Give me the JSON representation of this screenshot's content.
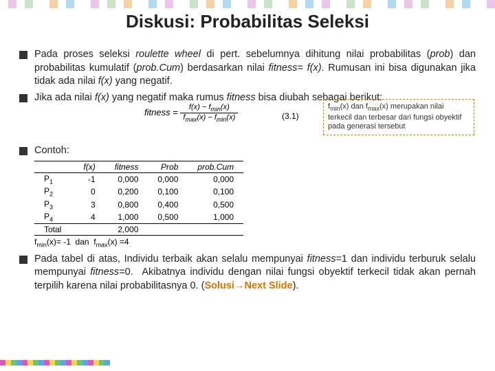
{
  "title": "Diskusi: Probabilitas Seleksi",
  "bullets": {
    "b1": "Pada proses seleksi roulette wheel di pert. sebelumnya dihitung nilai probabilitas (prob) dan probabilitas kumulatif (prob.Cum) berdasarkan nilai fitness= f(x). Rumusan ini bisa digunakan jika tidak ada nilai f(x) yang negatif.",
    "b2": "Jika ada nilai f(x) yang negatif maka rumus fitness bisa diubah sebagai berikut:",
    "b3": "Contoh:",
    "b4": "Pada tabel di atas, Individu terbaik akan selalu mempunyai fitness=1 dan individu terburuk selalu mempunyai fitness=0.  Akibatnya individu dengan nilai fungsi obyektif terkecil tidak akan pernah terpilih karena nilai probabilitasnya 0. (",
    "b4_solusi": "Solusi",
    "b4_arrow": "→",
    "b4_next": "Next Slide",
    "b4_end": ")."
  },
  "equation": {
    "lhs": "fitness =",
    "num": "f(x) − f_min(x)",
    "den": "f_max(x) − f_min(x)",
    "label": "(3.1)"
  },
  "note": {
    "text": "f_min(x) dan f_max(x) merupakan nilai terkecil dan terbesar dari fungsi obyektif pada generasi tersebut"
  },
  "table": {
    "headers": [
      "",
      "f(x)",
      "fitness",
      "Prob",
      "prob.Cum"
    ],
    "rows": [
      [
        "P1",
        "-1",
        "0,000",
        "0,000",
        "0,000"
      ],
      [
        "P2",
        "0",
        "0,200",
        "0,100",
        "0,100"
      ],
      [
        "P3",
        "3",
        "0,800",
        "0,400",
        "0,500"
      ],
      [
        "P4",
        "4",
        "1,000",
        "0,500",
        "1,000"
      ]
    ],
    "total": [
      "Total",
      "",
      "2,000",
      "",
      ""
    ]
  },
  "fline": "f_min(x)= -1  dan  f_max(x) =4",
  "mosaic_top_colors": [
    "#fff",
    "#e8c6e8",
    "#fff",
    "#c9e4c9",
    "#fff",
    "#fff",
    "#f4d2a6",
    "#fff",
    "#b3d8f2",
    "#fff",
    "#fff",
    "#e8c6e8",
    "#fff",
    "#c9e4c9",
    "#fff",
    "#f4d2a6",
    "#fff",
    "#fff",
    "#b3d8f2",
    "#fff",
    "#e8c6e8",
    "#fff",
    "#fff",
    "#c9e4c9",
    "#fff",
    "#f4d2a6",
    "#fff",
    "#b3d8f2",
    "#fff",
    "#fff",
    "#e8c6e8",
    "#fff",
    "#c9e4c9",
    "#fff",
    "#fff",
    "#f4d2a6",
    "#fff",
    "#b3d8f2",
    "#fff",
    "#e8c6e8",
    "#fff",
    "#fff",
    "#c9e4c9",
    "#fff",
    "#f4d2a6",
    "#fff",
    "#fff",
    "#b3d8f2",
    "#fff",
    "#e8c6e8",
    "#fff",
    "#c9e4c9",
    "#fff",
    "#fff",
    "#f4d2a6",
    "#fff",
    "#b3d8f2",
    "#fff",
    "#fff",
    "#e8c6e8"
  ],
  "mosaic_bottom_colors": [
    "#e055c4",
    "#ffd24a",
    "#6ec46e",
    "#52a8e8",
    "#e055c4",
    "#ffd24a",
    "#6ec46e",
    "#52a8e8",
    "#e055c4",
    "#ffd24a",
    "#6ec46e",
    "#52a8e8",
    "#e055c4",
    "#ffd24a",
    "#6ec46e",
    "#52a8e8",
    "#e055c4",
    "#ffd24a",
    "#6ec46e",
    "#52a8e8"
  ]
}
